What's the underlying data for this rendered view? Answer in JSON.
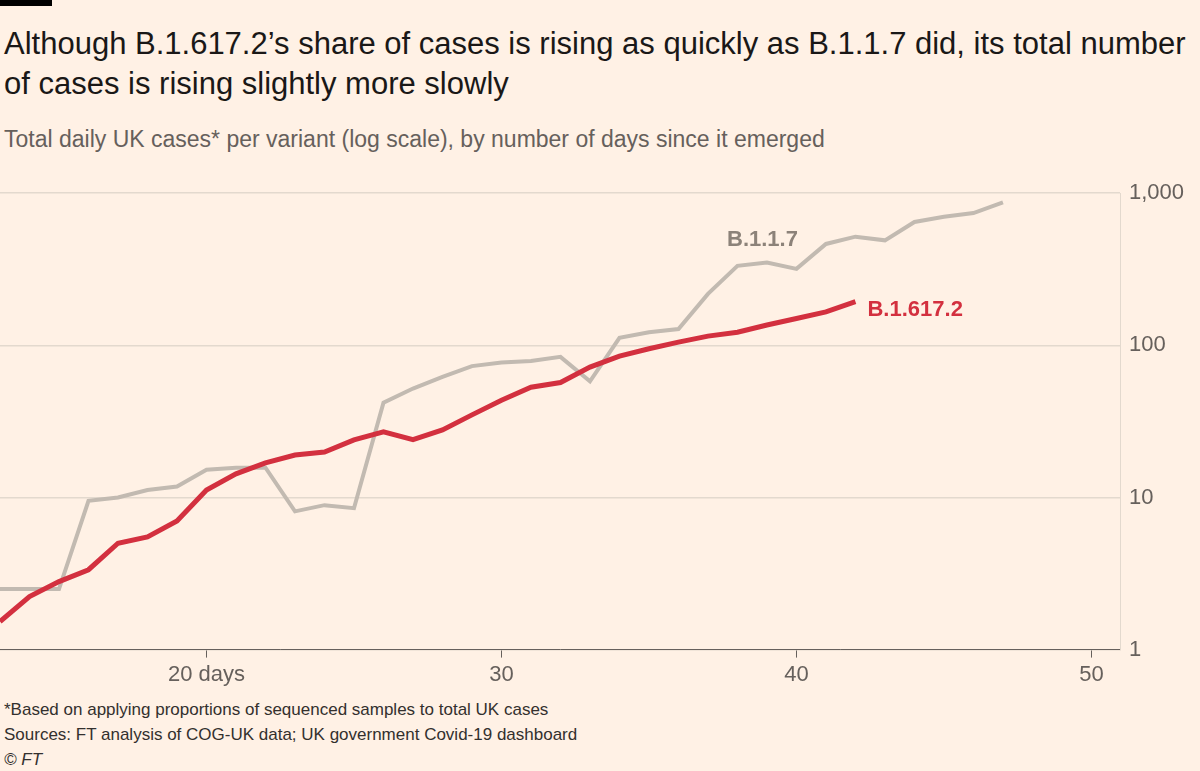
{
  "chart_data": {
    "type": "line",
    "title": "Although B.1.617.2’s share of cases is rising as quickly as B.1.1.7 did, its total number of cases is rising slightly more slowly",
    "subtitle": "Total daily UK cases* per variant (log scale), by number of days since it emerged",
    "footnotes": [
      "*Based on applying proportions of sequenced samples to total UK cases",
      "Sources: FT analysis of COG-UK data; UK government Covid-19 dashboard",
      "© FT"
    ],
    "log": "y",
    "grid": true,
    "xlim": [
      13,
      51
    ],
    "xticks": [
      {
        "value": 20,
        "label": "20 days"
      },
      30,
      40,
      50
    ],
    "ylim": [
      1,
      1000
    ],
    "yticks": [
      1,
      10,
      100,
      {
        "value": 1000,
        "label": "1,000"
      }
    ],
    "series": [
      {
        "name": "B.1.1.7",
        "color": "#c2bab1",
        "x": [
          13,
          14,
          15,
          16,
          17,
          18,
          19,
          20,
          21,
          22,
          23,
          24,
          25,
          26,
          27,
          28,
          29,
          30,
          31,
          32,
          33,
          34,
          35,
          36,
          37,
          38,
          39,
          40,
          41,
          42,
          43,
          44,
          45,
          46,
          47
        ],
        "values": [
          2.5,
          2.5,
          2.5,
          9.5,
          10,
          11.2,
          11.8,
          15.2,
          15.7,
          15.7,
          8.1,
          8.9,
          8.5,
          42,
          52,
          62,
          73,
          77,
          79,
          84,
          58,
          112,
          122,
          128,
          218,
          333,
          350,
          318,
          464,
          518,
          490,
          647,
          700,
          740,
          870
        ]
      },
      {
        "name": "B.1.617.2",
        "color": "#d3303f",
        "x": [
          13,
          14,
          15,
          16,
          17,
          18,
          19,
          20,
          21,
          22,
          23,
          24,
          25,
          26,
          27,
          28,
          29,
          30,
          31,
          32,
          33,
          34,
          35,
          36,
          37,
          38,
          39,
          40,
          41,
          42
        ],
        "values": [
          1.53,
          2.23,
          2.8,
          3.35,
          5.0,
          5.5,
          7.0,
          11.2,
          14.3,
          16.9,
          19.0,
          19.9,
          23.9,
          27,
          24,
          27.8,
          34.9,
          43.6,
          53,
          57,
          72,
          85,
          95,
          105,
          115,
          122,
          136,
          150,
          166,
          194
        ]
      }
    ]
  }
}
